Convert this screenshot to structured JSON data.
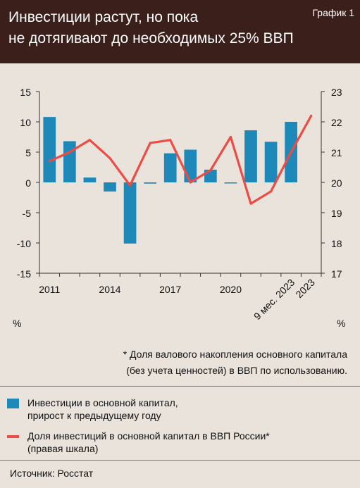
{
  "header": {
    "title_line1": "Инвестиции растут, но пока",
    "title_line2": "не дотягивают до необходимых 25% ВВП",
    "badge": "График 1"
  },
  "colors": {
    "bar": "#1e88b8",
    "line": "#ef4b45"
  },
  "chart_data": {
    "type": "bar",
    "x": [
      "2011",
      "2012",
      "2013",
      "2014",
      "2015",
      "2016",
      "2017",
      "2018",
      "2019",
      "2020",
      "2021",
      "2022",
      "9 мес. 2023",
      "2023"
    ],
    "x_tick_labels": [
      "2011",
      "2014",
      "2017",
      "2020",
      "9 мес. 2023",
      "2023"
    ],
    "left_axis": {
      "unit": "%",
      "ylim": [
        -15,
        15
      ],
      "ticks": [
        "15",
        "10",
        "5",
        "0",
        "-5",
        "-10",
        "-15"
      ]
    },
    "right_axis": {
      "unit": "%",
      "ylim": [
        17,
        23
      ],
      "ticks": [
        "23",
        "22",
        "21",
        "20",
        "19",
        "18",
        "17"
      ]
    },
    "series": [
      {
        "name": "Инвестиции в основной капитал, прирост к предыдущему году",
        "type": "bar",
        "axis": "left",
        "values": [
          10.8,
          6.8,
          0.8,
          -1.5,
          -10.1,
          -0.2,
          4.8,
          5.4,
          2.1,
          -0.1,
          8.6,
          6.7,
          10.0,
          null
        ]
      },
      {
        "name": "Доля инвестиций в основной капитал в ВВП России* (правая шкала)",
        "type": "line",
        "axis": "right",
        "values": [
          20.7,
          21.0,
          21.4,
          20.8,
          19.9,
          21.3,
          21.4,
          20.0,
          20.4,
          21.5,
          19.3,
          19.7,
          21.0,
          22.2
        ]
      }
    ]
  },
  "footnote": {
    "line1": "* Доля валового накопления основного капитала",
    "line2": "(без учета ценностей) в ВВП по использованию."
  },
  "legend": {
    "bar_line1": "Инвестиции в основной капитал,",
    "bar_line2": "прирост к предыдущему году",
    "line_line1": "Доля инвестиций в основной капитал в ВВП России*",
    "line_line2": "(правая шкала)"
  },
  "source": "Источник: Росстат"
}
